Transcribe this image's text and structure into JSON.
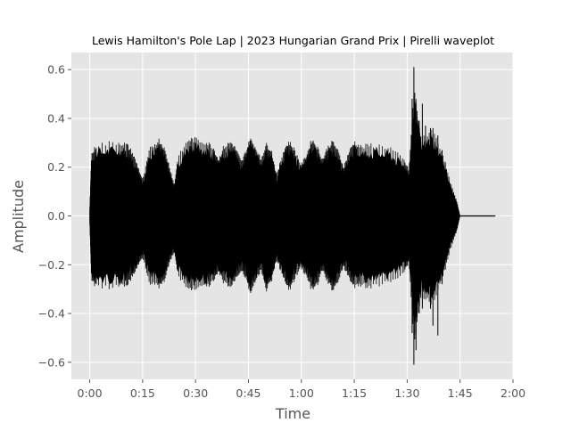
{
  "chart_data": {
    "type": "area",
    "title": "Lewis Hamilton's Pole Lap | 2023 Hungarian Grand Prix | Pirelli waveplot",
    "xlabel": "Time",
    "ylabel": "Amplitude",
    "xlim": [
      -5.2,
      120
    ],
    "ylim": [
      -0.67,
      0.67
    ],
    "x_ticks": [
      0,
      15,
      30,
      45,
      60,
      75,
      90,
      105,
      120
    ],
    "x_tick_labels": [
      "0:00",
      "0:15",
      "0:30",
      "0:45",
      "1:00",
      "1:15",
      "1:30",
      "1:45",
      "2:00"
    ],
    "y_ticks": [
      -0.6,
      -0.4,
      -0.2,
      0.0,
      0.2,
      0.4,
      0.6
    ],
    "y_tick_labels": [
      "−0.6",
      "−0.4",
      "−0.2",
      "0.0",
      "0.2",
      "0.4",
      "0.6"
    ],
    "grid": true,
    "series": [
      {
        "color": "#000000",
        "envelope": {
          "x": [
            0,
            0.5,
            2,
            8,
            10.5,
            12,
            13.5,
            15,
            17,
            19.5,
            21,
            22.5,
            24,
            25,
            28,
            30,
            33,
            35,
            36.5,
            38,
            40,
            41.5,
            43,
            44.5,
            45.5,
            47,
            48.5,
            50,
            51.5,
            53,
            55,
            56.5,
            58,
            60,
            61.5,
            63,
            64.5,
            66,
            67.5,
            69,
            70.5,
            72,
            73.5,
            75,
            77,
            80,
            85,
            89,
            90.5,
            92,
            94,
            97,
            100,
            102,
            104,
            105,
            106.5
          ],
          "y_max": [
            0.02,
            0.24,
            0.28,
            0.29,
            0.28,
            0.25,
            0.2,
            0.14,
            0.26,
            0.3,
            0.27,
            0.2,
            0.12,
            0.23,
            0.3,
            0.3,
            0.29,
            0.27,
            0.22,
            0.27,
            0.29,
            0.26,
            0.21,
            0.26,
            0.3,
            0.27,
            0.22,
            0.28,
            0.26,
            0.16,
            0.26,
            0.29,
            0.26,
            0.2,
            0.24,
            0.3,
            0.27,
            0.22,
            0.27,
            0.29,
            0.25,
            0.19,
            0.25,
            0.29,
            0.27,
            0.28,
            0.27,
            0.22,
            0.18,
            0.5,
            0.3,
            0.34,
            0.25,
            0.14,
            0.06,
            0.0,
            0.0
          ],
          "y_min": [
            -0.02,
            -0.25,
            -0.28,
            -0.28,
            -0.27,
            -0.24,
            -0.2,
            -0.16,
            -0.26,
            -0.28,
            -0.26,
            -0.19,
            -0.14,
            -0.23,
            -0.29,
            -0.28,
            -0.28,
            -0.26,
            -0.22,
            -0.26,
            -0.28,
            -0.24,
            -0.21,
            -0.25,
            -0.3,
            -0.26,
            -0.21,
            -0.29,
            -0.26,
            -0.17,
            -0.25,
            -0.29,
            -0.25,
            -0.2,
            -0.24,
            -0.29,
            -0.27,
            -0.21,
            -0.26,
            -0.29,
            -0.25,
            -0.2,
            -0.24,
            -0.28,
            -0.27,
            -0.28,
            -0.26,
            -0.22,
            -0.18,
            -0.5,
            -0.31,
            -0.35,
            -0.25,
            -0.14,
            -0.06,
            0.0,
            0.0
          ]
        },
        "spikes": [
          {
            "x": 91.4,
            "y_max": 0.48,
            "y_min": -0.48
          },
          {
            "x": 91.9,
            "y_max": 0.61,
            "y_min": -0.61
          },
          {
            "x": 92.5,
            "y_max": 0.46,
            "y_min": -0.55
          },
          {
            "x": 93.4,
            "y_max": 0.39,
            "y_min": -0.4
          },
          {
            "x": 94.3,
            "y_max": 0.46,
            "y_min": -0.38
          },
          {
            "x": 95.2,
            "y_max": 0.37,
            "y_min": -0.3
          },
          {
            "x": 96.6,
            "y_max": 0.36,
            "y_min": -0.38
          },
          {
            "x": 97.3,
            "y_max": 0.36,
            "y_min": -0.45
          },
          {
            "x": 98.7,
            "y_max": 0.33,
            "y_min": -0.49
          },
          {
            "x": 99.9,
            "y_max": 0.27,
            "y_min": -0.28
          },
          {
            "x": 101.2,
            "y_max": 0.15,
            "y_min": -0.15
          }
        ],
        "tail": {
          "x": [
            104.5,
            115
          ],
          "y": 0.0
        }
      }
    ]
  }
}
